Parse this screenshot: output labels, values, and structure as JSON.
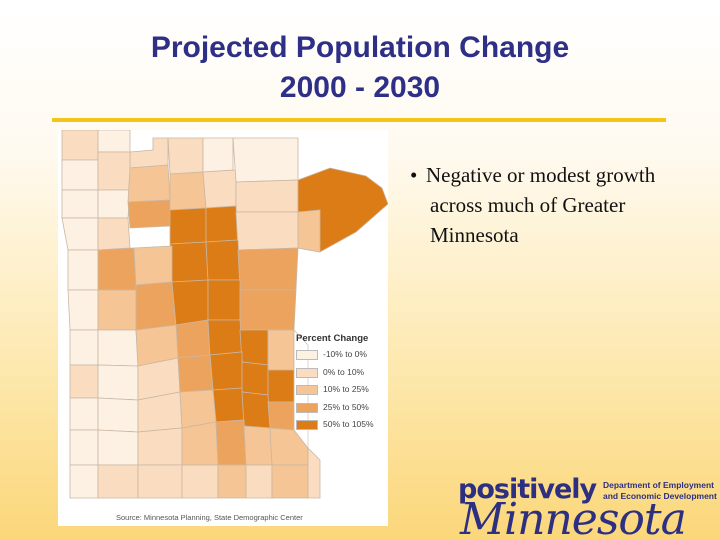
{
  "slide": {
    "title_line1": "Projected Population Change",
    "title_line2": "2000 - 2030",
    "bullet_marker": "•",
    "bullet_text": "Negative or modest growth across much of Greater Minnesota"
  },
  "map": {
    "legend_title": "Percent Change",
    "legend": [
      {
        "label": "-10% to 0%",
        "color": "#fdf1e4"
      },
      {
        "label": "0% to 10%",
        "color": "#fadcc0"
      },
      {
        "label": "10% to 25%",
        "color": "#f5c596"
      },
      {
        "label": "25% to 50%",
        "color": "#eca35e"
      },
      {
        "label": "50% to 105%",
        "color": "#dc7c16"
      }
    ],
    "source": "Source: Minnesota Planning, State Demographic Center"
  },
  "logo": {
    "top_word": "positively",
    "main_word": "Minnesota",
    "department_line1": "Department of Employment",
    "department_line2": "and Economic Development"
  },
  "colors": {
    "title": "#2e2f86",
    "rule": "#f2c51b",
    "logo": "#2d2f80"
  }
}
